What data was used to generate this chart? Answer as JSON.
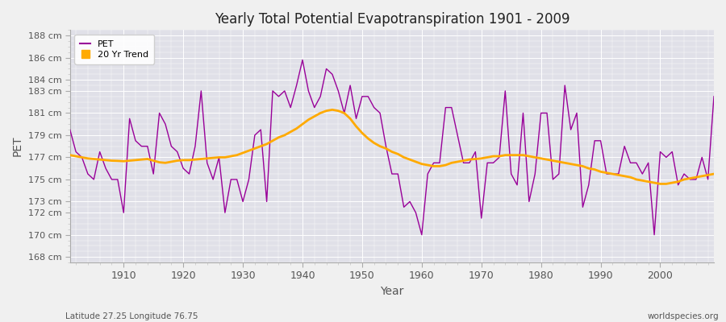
{
  "title": "Yearly Total Potential Evapotranspiration 1901 - 2009",
  "xlabel": "Year",
  "ylabel": "PET",
  "x_label_bottom_left": "Latitude 27.25 Longitude 76.75",
  "x_label_bottom_right": "worldspecies.org",
  "background_color": "#f0f0f0",
  "plot_bg_color": "#e0e0e8",
  "pet_color": "#990099",
  "trend_color": "#ffaa00",
  "ylim": [
    167.5,
    188.5
  ],
  "yticks": [
    168,
    170,
    172,
    173,
    175,
    177,
    179,
    181,
    183,
    184,
    186,
    188
  ],
  "years": [
    1901,
    1902,
    1903,
    1904,
    1905,
    1906,
    1907,
    1908,
    1909,
    1910,
    1911,
    1912,
    1913,
    1914,
    1915,
    1916,
    1917,
    1918,
    1919,
    1920,
    1921,
    1922,
    1923,
    1924,
    1925,
    1926,
    1927,
    1928,
    1929,
    1930,
    1931,
    1932,
    1933,
    1934,
    1935,
    1936,
    1937,
    1938,
    1939,
    1940,
    1941,
    1942,
    1943,
    1944,
    1945,
    1946,
    1947,
    1948,
    1949,
    1950,
    1951,
    1952,
    1953,
    1954,
    1955,
    1956,
    1957,
    1958,
    1959,
    1960,
    1961,
    1962,
    1963,
    1964,
    1965,
    1966,
    1967,
    1968,
    1969,
    1970,
    1971,
    1972,
    1973,
    1974,
    1975,
    1976,
    1977,
    1978,
    1979,
    1980,
    1981,
    1982,
    1983,
    1984,
    1985,
    1986,
    1987,
    1988,
    1989,
    1990,
    1991,
    1992,
    1993,
    1994,
    1995,
    1996,
    1997,
    1998,
    1999,
    2000,
    2001,
    2002,
    2003,
    2004,
    2005,
    2006,
    2007,
    2008,
    2009
  ],
  "pet_values": [
    179.5,
    177.5,
    177.0,
    175.5,
    175.0,
    177.5,
    176.0,
    175.0,
    175.0,
    172.0,
    180.5,
    178.5,
    178.0,
    178.0,
    175.5,
    181.0,
    180.0,
    178.0,
    177.5,
    176.0,
    175.5,
    178.0,
    183.0,
    176.5,
    175.0,
    177.0,
    172.0,
    175.0,
    175.0,
    173.0,
    175.0,
    179.0,
    179.5,
    173.0,
    183.0,
    182.5,
    183.0,
    181.5,
    183.5,
    185.8,
    183.0,
    181.5,
    182.5,
    185.0,
    184.5,
    183.0,
    181.0,
    183.5,
    180.5,
    182.5,
    182.5,
    181.5,
    181.0,
    178.0,
    175.5,
    175.5,
    172.5,
    173.0,
    172.0,
    170.0,
    175.5,
    176.5,
    176.5,
    181.5,
    181.5,
    179.0,
    176.5,
    176.5,
    177.5,
    171.5,
    176.5,
    176.5,
    177.0,
    183.0,
    175.5,
    174.5,
    181.0,
    173.0,
    175.5,
    181.0,
    181.0,
    175.0,
    175.5,
    183.5,
    179.5,
    181.0,
    172.5,
    174.5,
    178.5,
    178.5,
    175.5,
    175.5,
    175.5,
    178.0,
    176.5,
    176.5,
    175.5,
    176.5,
    170.0,
    177.5,
    177.0,
    177.5,
    174.5,
    175.5,
    175.0,
    175.0,
    177.0,
    175.0,
    182.5
  ],
  "trend_values": [
    177.2,
    177.1,
    177.0,
    176.9,
    176.85,
    176.8,
    176.75,
    176.7,
    176.68,
    176.65,
    176.7,
    176.75,
    176.8,
    176.85,
    176.7,
    176.55,
    176.5,
    176.6,
    176.7,
    176.75,
    176.75,
    176.8,
    176.85,
    176.9,
    176.95,
    177.0,
    177.0,
    177.1,
    177.2,
    177.4,
    177.6,
    177.8,
    178.0,
    178.2,
    178.5,
    178.8,
    179.0,
    179.3,
    179.6,
    180.0,
    180.4,
    180.7,
    181.0,
    181.2,
    181.3,
    181.2,
    181.0,
    180.5,
    179.8,
    179.2,
    178.7,
    178.3,
    178.0,
    177.8,
    177.5,
    177.3,
    177.0,
    176.8,
    176.6,
    176.4,
    176.3,
    176.2,
    176.2,
    176.3,
    176.5,
    176.6,
    176.7,
    176.8,
    176.85,
    176.9,
    177.0,
    177.1,
    177.1,
    177.2,
    177.2,
    177.2,
    177.2,
    177.1,
    177.0,
    176.9,
    176.8,
    176.7,
    176.6,
    176.5,
    176.4,
    176.3,
    176.2,
    176.0,
    175.9,
    175.7,
    175.6,
    175.5,
    175.4,
    175.3,
    175.2,
    175.0,
    174.9,
    174.8,
    174.7,
    174.6,
    174.6,
    174.7,
    174.8,
    175.0,
    175.1,
    175.2,
    175.3,
    175.4,
    175.5
  ],
  "xticks": [
    1910,
    1920,
    1930,
    1940,
    1950,
    1960,
    1970,
    1980,
    1990,
    2000
  ],
  "xlim": [
    1901,
    2009
  ]
}
